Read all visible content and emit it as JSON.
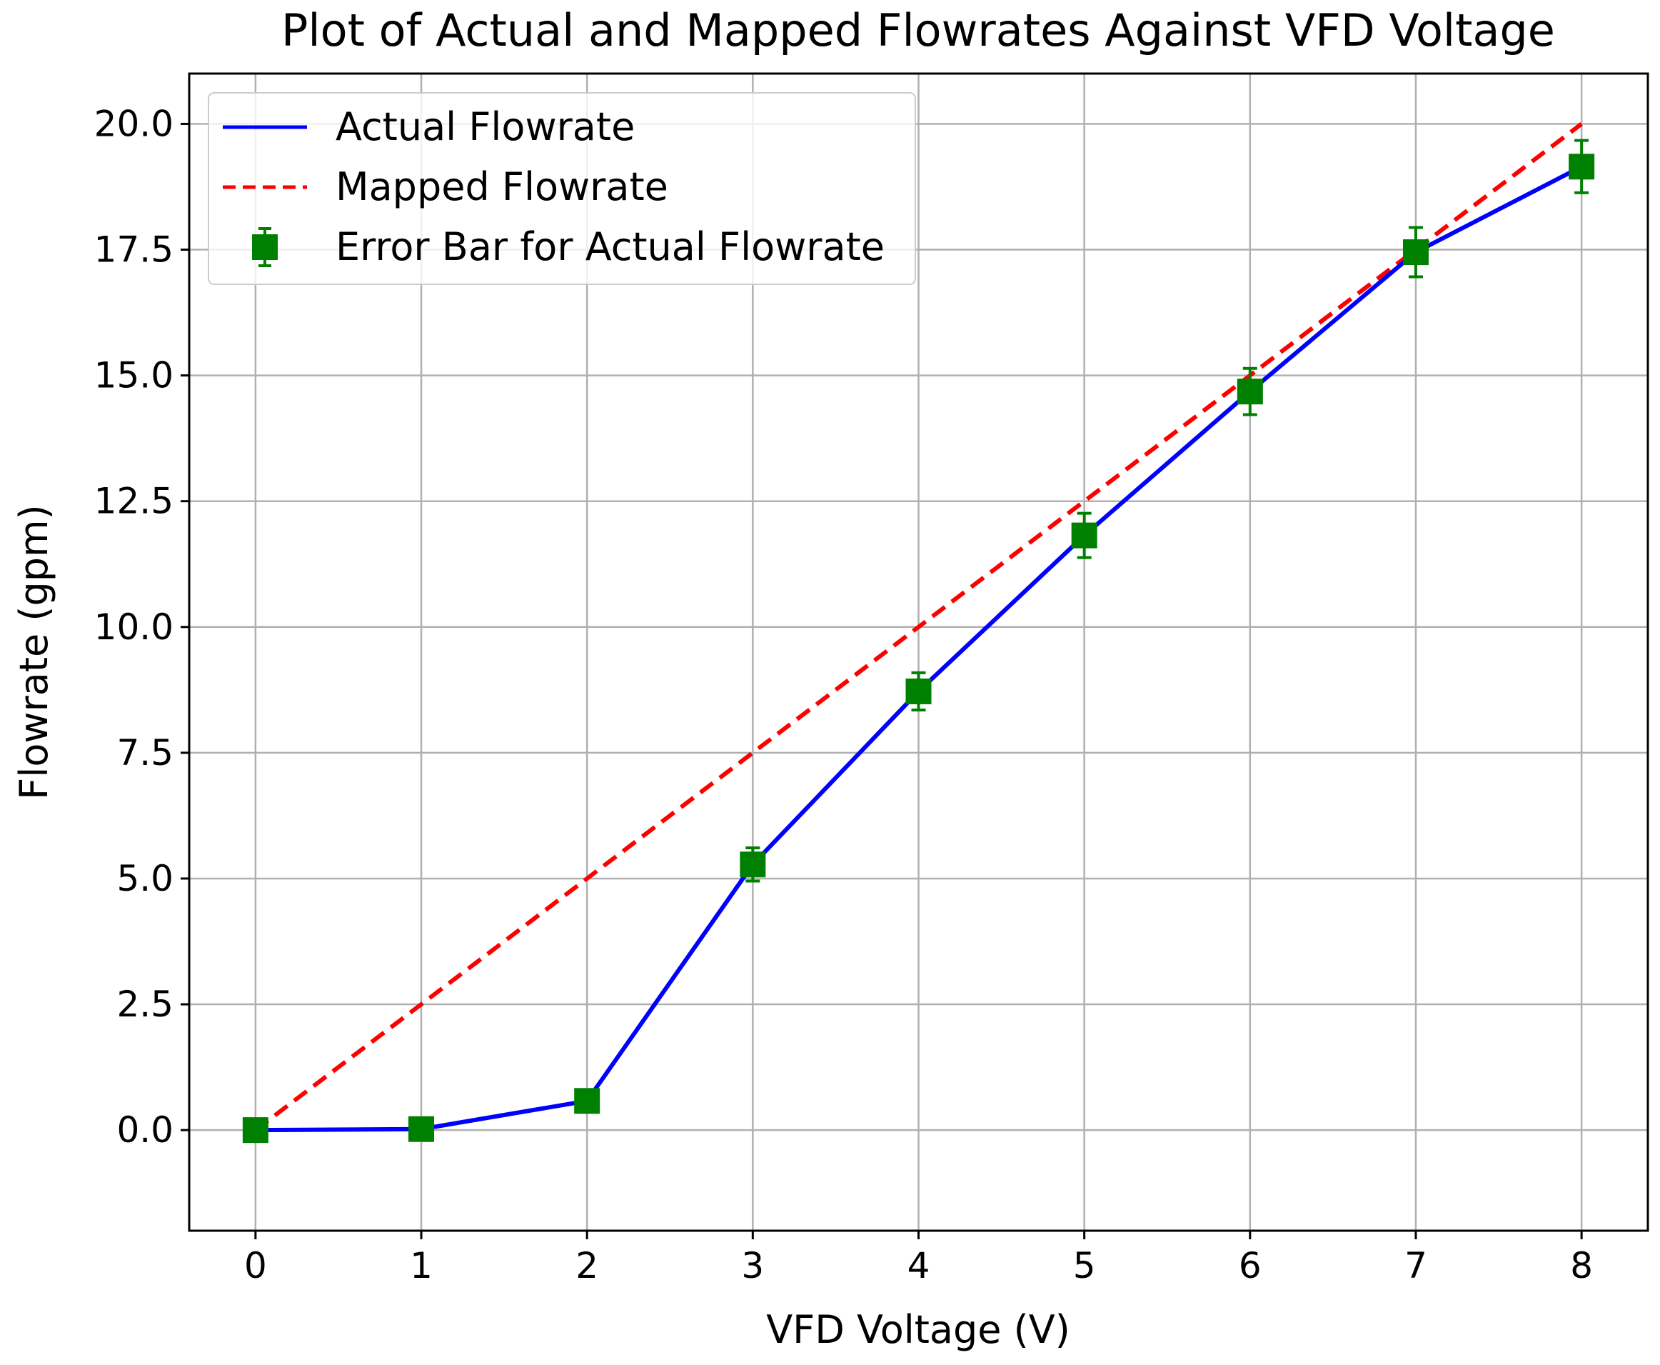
{
  "chart_data": {
    "type": "line",
    "title": "Plot of Actual and Mapped Flowrates Against VFD Voltage",
    "xlabel": "VFD Voltage (V)",
    "ylabel": "Flowrate (gpm)",
    "xlim": [
      -0.4,
      8.4
    ],
    "ylim": [
      -2.0,
      21.0
    ],
    "x_ticks": [
      0,
      1,
      2,
      3,
      4,
      5,
      6,
      7,
      8
    ],
    "x_tick_labels": [
      "0",
      "1",
      "2",
      "3",
      "4",
      "5",
      "6",
      "7",
      "8"
    ],
    "y_ticks": [
      0,
      2.5,
      5,
      7.5,
      10,
      12.5,
      15,
      17.5,
      20
    ],
    "y_tick_labels": [
      "0.0",
      "2.5",
      "5.0",
      "7.5",
      "10.0",
      "12.5",
      "15.0",
      "17.5",
      "20.0"
    ],
    "grid": true,
    "legend_position": "top-left",
    "x": [
      0,
      1,
      2,
      3,
      4,
      5,
      6,
      7,
      8
    ],
    "series": [
      {
        "name": "Actual Flowrate",
        "kind": "line",
        "style": "solid",
        "color": "#0000ff",
        "values": [
          0.0,
          0.02,
          0.58,
          5.28,
          8.72,
          11.82,
          14.68,
          17.45,
          19.15
        ]
      },
      {
        "name": "Mapped Flowrate",
        "kind": "line",
        "style": "dashed",
        "color": "#ff0000",
        "values": [
          0.0,
          2.5,
          5.0,
          7.5,
          10.0,
          12.5,
          15.0,
          17.5,
          20.0
        ]
      },
      {
        "name": "Error Bar for Actual Flowrate",
        "kind": "errorbar",
        "marker": "square",
        "color": "#008000",
        "values": [
          0.0,
          0.02,
          0.58,
          5.28,
          8.72,
          11.82,
          14.68,
          17.45,
          19.15
        ],
        "errors": [
          0.0,
          0.0,
          0.0,
          0.33,
          0.37,
          0.44,
          0.46,
          0.49,
          0.52
        ]
      }
    ]
  }
}
